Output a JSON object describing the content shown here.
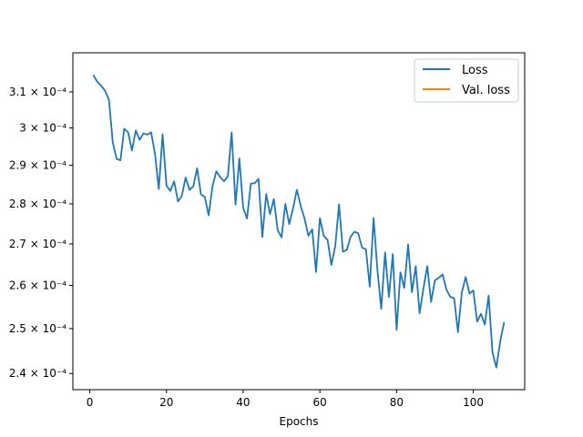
{
  "chart_data": {
    "type": "line",
    "xlabel": "Epochs",
    "ylabel": "",
    "yscale": "log",
    "xlim": [
      -4.4,
      113.4
    ],
    "ylim": [
      0.0002365,
      0.0003212
    ],
    "xticks": [
      0,
      20,
      40,
      60,
      80,
      100
    ],
    "yticks": [
      0.00024,
      0.00025,
      0.00026,
      0.00027,
      0.00028,
      0.00029,
      0.0003,
      0.00031
    ],
    "ytick_labels": [
      "2.4 × 10⁻⁴",
      "2.5 × 10⁻⁴",
      "2.6 × 10⁻⁴",
      "2.7 × 10⁻⁴",
      "2.8 × 10⁻⁴",
      "2.9 × 10⁻⁴",
      "3 × 10⁻⁴",
      "3.1 × 10⁻⁴"
    ],
    "legend": {
      "position": "top-right"
    },
    "series": [
      {
        "name": "Loss",
        "color": "#1f77b4",
        "x": [
          1,
          2,
          3,
          4,
          5,
          6,
          7,
          8,
          9,
          10,
          11,
          12,
          13,
          14,
          15,
          16,
          17,
          18,
          19,
          20,
          21,
          22,
          23,
          24,
          25,
          26,
          27,
          28,
          29,
          30,
          31,
          32,
          33,
          34,
          35,
          36,
          37,
          38,
          39,
          40,
          41,
          42,
          43,
          44,
          45,
          46,
          47,
          48,
          49,
          50,
          51,
          52,
          53,
          54,
          55,
          56,
          57,
          58,
          59,
          60,
          61,
          62,
          63,
          64,
          65,
          66,
          67,
          68,
          69,
          70,
          71,
          72,
          73,
          74,
          75,
          76,
          77,
          78,
          79,
          80,
          81,
          82,
          83,
          84,
          85,
          86,
          87,
          88,
          89,
          90,
          91,
          92,
          93,
          94,
          95,
          96,
          97,
          98,
          99,
          100,
          101,
          102,
          103,
          104,
          105,
          106,
          107,
          108
        ],
        "y": [
          0.0003146,
          0.0003128,
          0.0003117,
          0.0003103,
          0.0003078,
          0.0002961,
          0.0002917,
          0.0002913,
          0.0002998,
          0.0002988,
          0.0002939,
          0.0002993,
          0.0002968,
          0.0002985,
          0.0002982,
          0.0002988,
          0.0002931,
          0.0002838,
          0.0002983,
          0.0002847,
          0.0002833,
          0.0002858,
          0.0002806,
          0.000282,
          0.0002868,
          0.0002836,
          0.0002845,
          0.0002892,
          0.0002824,
          0.0002818,
          0.0002771,
          0.0002845,
          0.0002884,
          0.0002869,
          0.0002858,
          0.0002871,
          0.0002988,
          0.0002798,
          0.0002918,
          0.000279,
          0.0002763,
          0.0002852,
          0.0002853,
          0.0002864,
          0.0002717,
          0.0002825,
          0.0002774,
          0.0002812,
          0.0002734,
          0.0002716,
          0.00028,
          0.0002749,
          0.0002788,
          0.0002836,
          0.0002795,
          0.0002763,
          0.000272,
          0.0002736,
          0.0002632,
          0.0002764,
          0.000272,
          0.000271,
          0.0002649,
          0.0002694,
          0.0002799,
          0.0002681,
          0.0002685,
          0.0002717,
          0.000273,
          0.0002726,
          0.0002691,
          0.0002687,
          0.0002597,
          0.0002764,
          0.0002637,
          0.0002545,
          0.0002679,
          0.0002573,
          0.0002675,
          0.0002497,
          0.0002631,
          0.0002594,
          0.0002699,
          0.0002584,
          0.0002646,
          0.0002535,
          0.0002593,
          0.0002646,
          0.0002561,
          0.0002612,
          0.0002618,
          0.0002626,
          0.000259,
          0.0002573,
          0.000257,
          0.0002492,
          0.0002583,
          0.000262,
          0.0002581,
          0.0002588,
          0.0002516,
          0.0002534,
          0.0002509,
          0.0002576,
          0.0002447,
          0.0002413,
          0.000247,
          0.0002513
        ]
      },
      {
        "name": "Val. loss",
        "color": "#ff7f0e",
        "x": [],
        "y": []
      }
    ]
  }
}
